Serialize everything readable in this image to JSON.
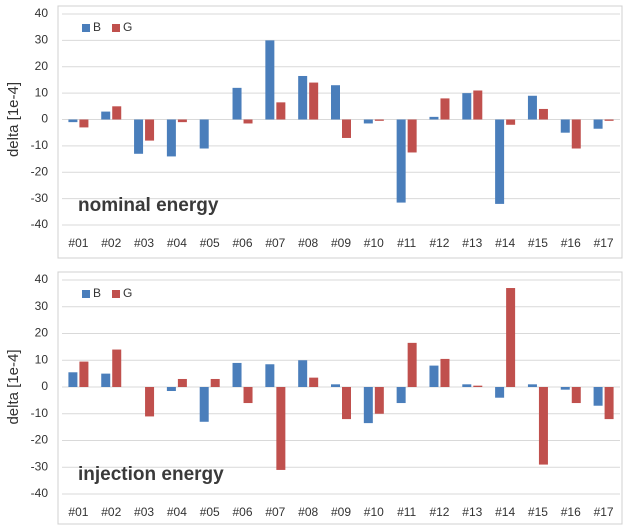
{
  "chart_data": [
    {
      "type": "bar",
      "annotation": "nominal energy",
      "ylabel": "delta [1e-4]",
      "categories": [
        "#01",
        "#02",
        "#03",
        "#04",
        "#05",
        "#06",
        "#07",
        "#08",
        "#09",
        "#10",
        "#11",
        "#12",
        "#13",
        "#14",
        "#15",
        "#16",
        "#17"
      ],
      "series": [
        {
          "name": "B",
          "color": "#4a7ebb",
          "values": [
            -1,
            3,
            -13,
            -14,
            -11,
            12,
            30,
            16.5,
            13,
            -1.5,
            -31.5,
            1,
            10,
            -32,
            9,
            -5,
            -3.5
          ]
        },
        {
          "name": "G",
          "color": "#c0504d",
          "values": [
            -3,
            5,
            -8,
            -1,
            0,
            -1.5,
            6.5,
            14,
            -7,
            -0.5,
            -12.5,
            8,
            11,
            -2,
            4,
            -11,
            -0.5
          ]
        }
      ],
      "ylim": [
        -40,
        40
      ],
      "yticks": [
        -40,
        -30,
        -20,
        -10,
        0,
        10,
        20,
        30,
        40
      ],
      "grid": true,
      "legend": "top-left"
    },
    {
      "type": "bar",
      "annotation": "injection energy",
      "ylabel": "delta [1e-4]",
      "categories": [
        "#01",
        "#02",
        "#03",
        "#04",
        "#05",
        "#06",
        "#07",
        "#08",
        "#09",
        "#10",
        "#11",
        "#12",
        "#13",
        "#14",
        "#15",
        "#16",
        "#17"
      ],
      "series": [
        {
          "name": "B",
          "color": "#4a7ebb",
          "values": [
            5.5,
            5,
            0,
            -1.5,
            -13,
            9,
            8.5,
            10,
            1,
            -13.5,
            -6,
            8,
            1,
            -4,
            1,
            -1,
            -7
          ]
        },
        {
          "name": "G",
          "color": "#c0504d",
          "values": [
            9.5,
            14,
            -11,
            3,
            3,
            -6,
            -31,
            3.5,
            -12,
            -10,
            16.5,
            10.5,
            0.5,
            37,
            -29,
            -6,
            -12
          ]
        }
      ],
      "ylim": [
        -40,
        40
      ],
      "yticks": [
        -40,
        -30,
        -20,
        -10,
        0,
        10,
        20,
        30,
        40
      ],
      "grid": true,
      "legend": "top-left"
    }
  ]
}
